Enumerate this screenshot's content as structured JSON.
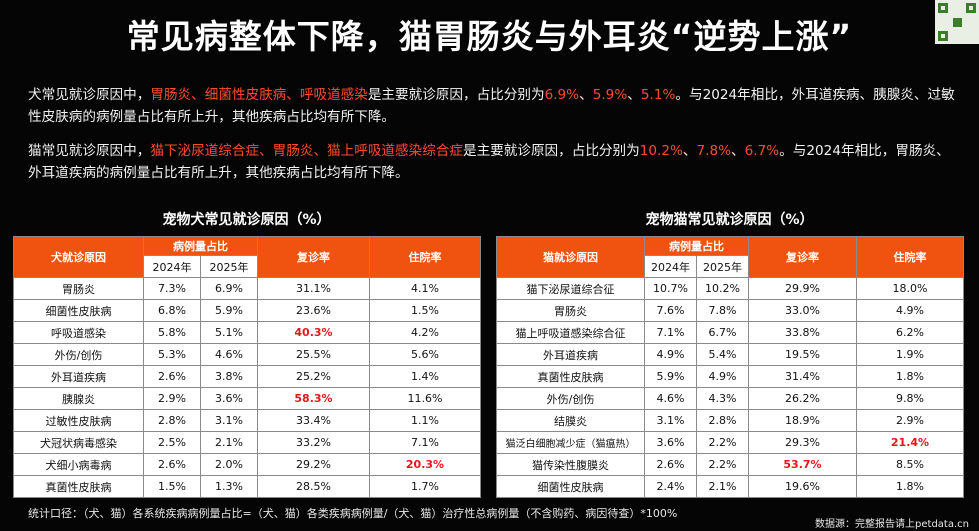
{
  "title": "常见病整体下降，猫胃肠炎与外耳炎“逆势上涨”",
  "dog_para": {
    "pre": "犬常见就诊原因中，",
    "diseases": "胃肠炎、细菌性皮肤病、呼吸道感染",
    "mid": "是主要就诊原因，占比分别为",
    "v1": "6.9%",
    "sep1": "、",
    "v2": "5.9%",
    "sep2": "、",
    "v3": "5.1%",
    "post": "。与2024年相比，外耳道疾病、胰腺炎、过敏性皮肤病的病例量占比有所上升，其他疾病占比均有所下降。"
  },
  "cat_para": {
    "pre": "猫常见就诊原因中，",
    "diseases": "猫下泌尿道综合症、胃肠炎、猫上呼吸道感染综合症",
    "mid": "是主要就诊原因，占比分别为",
    "v1": "10.2%",
    "sep1": "、",
    "v2": "7.8%",
    "sep2": "、",
    "v3": "6.7%",
    "post": "。与2024年相比，胃肠炎、外耳道疾病的病例量占比有所上升，其他疾病占比均有所下降。"
  },
  "dog_table": {
    "title": "宠物犬常见就诊原因（%）",
    "h_cause": "犬就诊原因",
    "h_share": "病例量占比",
    "h_2024": "2024年",
    "h_2025": "2025年",
    "h_revisit": "复诊率",
    "h_hosp": "住院率",
    "rows": [
      {
        "name": "胃肠炎",
        "y2024": "7.3%",
        "y2025": "6.9%",
        "revisit": "31.1%",
        "hosp": "4.1%"
      },
      {
        "name": "细菌性皮肤病",
        "y2024": "6.8%",
        "y2025": "5.9%",
        "revisit": "23.6%",
        "hosp": "1.5%"
      },
      {
        "name": "呼吸道感染",
        "y2024": "5.8%",
        "y2025": "5.1%",
        "revisit": "40.3%",
        "hosp": "4.2%"
      },
      {
        "name": "外伤/创伤",
        "y2024": "5.3%",
        "y2025": "4.6%",
        "revisit": "25.5%",
        "hosp": "5.6%"
      },
      {
        "name": "外耳道疾病",
        "y2024": "2.6%",
        "y2025": "3.8%",
        "revisit": "25.2%",
        "hosp": "1.4%"
      },
      {
        "name": "胰腺炎",
        "y2024": "2.9%",
        "y2025": "3.6%",
        "revisit": "58.3%",
        "hosp": "11.6%"
      },
      {
        "name": "过敏性皮肤病",
        "y2024": "2.8%",
        "y2025": "3.1%",
        "revisit": "33.4%",
        "hosp": "1.1%"
      },
      {
        "name": "犬冠状病毒感染",
        "y2024": "2.5%",
        "y2025": "2.1%",
        "revisit": "33.2%",
        "hosp": "7.1%"
      },
      {
        "name": "犬细小病毒病",
        "y2024": "2.6%",
        "y2025": "2.0%",
        "revisit": "29.2%",
        "hosp": "20.3%"
      },
      {
        "name": "真菌性皮肤病",
        "y2024": "1.5%",
        "y2025": "1.3%",
        "revisit": "28.5%",
        "hosp": "1.7%"
      }
    ]
  },
  "cat_table": {
    "title": "宠物猫常见就诊原因（%）",
    "h_cause": "猫就诊原因",
    "h_share": "病例量占比",
    "h_2024": "2024年",
    "h_2025": "2025年",
    "h_revisit": "复诊率",
    "h_hosp": "住院率",
    "rows": [
      {
        "name": "猫下泌尿道综合征",
        "y2024": "10.7%",
        "y2025": "10.2%",
        "revisit": "29.9%",
        "hosp": "18.0%"
      },
      {
        "name": "胃肠炎",
        "y2024": "7.6%",
        "y2025": "7.8%",
        "revisit": "33.0%",
        "hosp": "4.9%"
      },
      {
        "name": "猫上呼吸道感染综合征",
        "y2024": "7.1%",
        "y2025": "6.7%",
        "revisit": "33.8%",
        "hosp": "6.2%"
      },
      {
        "name": "外耳道疾病",
        "y2024": "4.9%",
        "y2025": "5.4%",
        "revisit": "19.5%",
        "hosp": "1.9%"
      },
      {
        "name": "真菌性皮肤病",
        "y2024": "5.9%",
        "y2025": "4.9%",
        "revisit": "31.4%",
        "hosp": "1.8%"
      },
      {
        "name": "外伤/创伤",
        "y2024": "4.6%",
        "y2025": "4.3%",
        "revisit": "26.2%",
        "hosp": "9.8%"
      },
      {
        "name": "结膜炎",
        "y2024": "3.1%",
        "y2025": "2.8%",
        "revisit": "18.9%",
        "hosp": "2.9%"
      },
      {
        "name": "猫泛白细胞减少症（猫瘟热）",
        "y2024": "3.6%",
        "y2025": "2.2%",
        "revisit": "29.3%",
        "hosp": "21.4%"
      },
      {
        "name": "猫传染性腹膜炎",
        "y2024": "2.6%",
        "y2025": "2.2%",
        "revisit": "53.7%",
        "hosp": "8.5%"
      },
      {
        "name": "细菌性皮肤病",
        "y2024": "2.4%",
        "y2025": "2.1%",
        "revisit": "19.6%",
        "hosp": "1.8%"
      }
    ]
  },
  "footer": "统计口径：（犬、猫）各系统疾病病例量占比=（犬、猫）各类疾病病例量/（犬、猫）治疗性总病例量（不含购药、病因待查）*100%",
  "source": "数据源：完整报告请上petdata.cn",
  "highlight_color": "#ff4b2e",
  "header_color": "#f0530f"
}
